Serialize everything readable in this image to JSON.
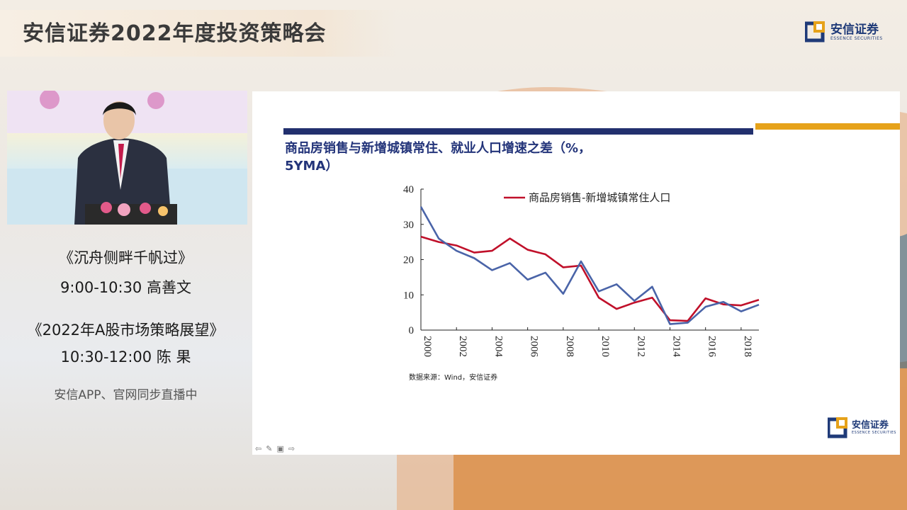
{
  "header": {
    "event_title": "安信证券2022年度投资策略会"
  },
  "brand": {
    "name": "安信证券",
    "sub": "ESSENCE SECURITIES",
    "colors": {
      "primary": "#1f3a78",
      "accent": "#e6a21a"
    }
  },
  "sidebar": {
    "talk1_title": "《沉舟侧畔千帆过》",
    "talk1_time": "9:00-10:30  高善文",
    "talk2_title": "《2022年A股市场策略展望》",
    "talk2_time": "10:30-12:00  陈  果",
    "live_note": "安信APP、官网同步直播中"
  },
  "slide": {
    "title_line1": "商品房销售与新增城镇常住、就业人口增速之差（%，",
    "title_line2": "5YMA）",
    "source": "数据来源：Wind，安信证券",
    "toolbar_icons": [
      "arrow-left-icon",
      "pen-icon",
      "slides-icon",
      "arrow-right-icon"
    ],
    "toolbar_glyphs": [
      "⇦",
      "✎",
      "▣",
      "⇨"
    ]
  },
  "chart_data": {
    "type": "line",
    "title": "商品房销售与新增城镇常住、就业人口增速之差（%，5YMA）",
    "x": [
      2000,
      2001,
      2002,
      2003,
      2004,
      2005,
      2006,
      2007,
      2008,
      2009,
      2010,
      2011,
      2012,
      2013,
      2014,
      2015,
      2016,
      2017,
      2018,
      2019
    ],
    "xticks": [
      "2000",
      "2002",
      "2004",
      "2006",
      "2008",
      "2010",
      "2012",
      "2014",
      "2016",
      "2018"
    ],
    "yticks": [
      "0",
      "10",
      "20",
      "30",
      "40"
    ],
    "ylim": [
      0,
      40
    ],
    "xlim": [
      2000,
      2019
    ],
    "legend_position": "top-right",
    "series": [
      {
        "name": "商品房销售-新增城镇常住人口",
        "color": "#c0102a",
        "values": [
          26.5,
          25,
          24,
          22,
          22.5,
          26,
          22.8,
          21.5,
          17.8,
          18.3,
          9.2,
          6,
          7.8,
          9.2,
          2.8,
          2.6,
          9,
          7.3,
          7,
          8.6
        ]
      },
      {
        "name": "",
        "color": "#4a64a8",
        "values": [
          35,
          26,
          22.5,
          20.4,
          17,
          19,
          14.3,
          16.3,
          10.3,
          19.5,
          11,
          13,
          8.3,
          12.3,
          1.7,
          2.1,
          6.6,
          8,
          5.3,
          7.2
        ]
      }
    ]
  }
}
